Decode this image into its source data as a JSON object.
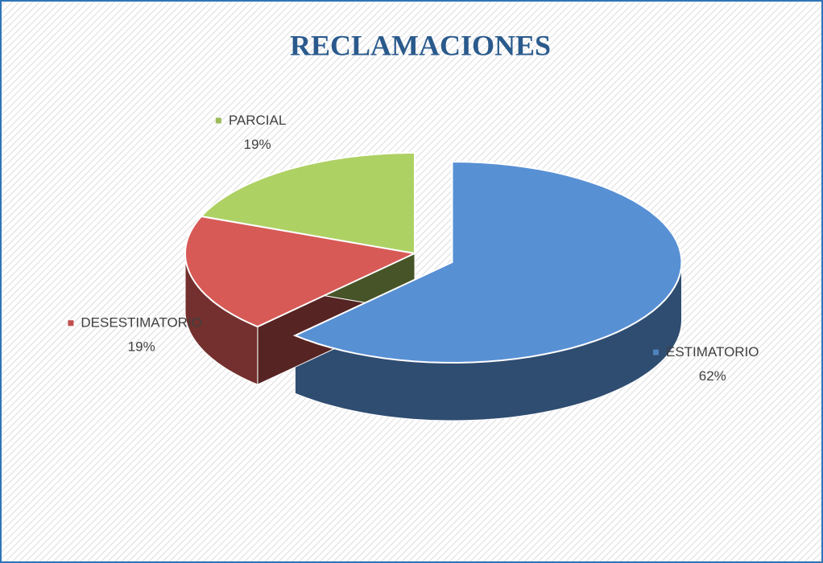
{
  "chart_data": {
    "type": "pie",
    "title": "RECLAMACIONES",
    "categories": [
      "ESTIMATORIO",
      "DESESTIMATORIO",
      "PARCIAL"
    ],
    "values": [
      62,
      19,
      19
    ],
    "value_labels": [
      "62%",
      "19%",
      "19%"
    ],
    "colors": [
      "#4f81bd",
      "#c0504d",
      "#9bbb59"
    ]
  }
}
